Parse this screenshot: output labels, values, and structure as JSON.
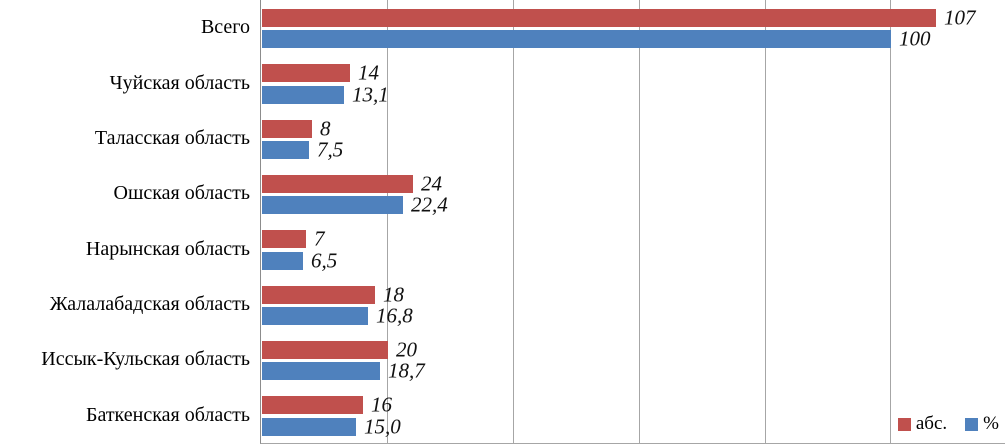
{
  "chart_data": {
    "type": "bar",
    "orientation": "horizontal",
    "title": "",
    "xlabel": "",
    "ylabel": "",
    "categories": [
      "Всего",
      "Чуйская область",
      "Таласская область",
      "Ошская область",
      "Нарынская область",
      "Жалалабадская область",
      "Иссык-Кульская область",
      "Баткенская область"
    ],
    "series": [
      {
        "name": "абс.",
        "color": "#C0504D",
        "values": [
          107,
          14,
          8,
          24,
          7,
          18,
          20,
          16
        ],
        "labels": [
          "107",
          "14",
          "8",
          "24",
          "7",
          "18",
          "20",
          "16"
        ]
      },
      {
        "name": "%",
        "color": "#4F81BD",
        "values": [
          100,
          13.1,
          7.5,
          22.4,
          6.5,
          16.8,
          18.7,
          15.0
        ],
        "labels": [
          "100",
          "13,1",
          "7,5",
          "22,4",
          "6,5",
          "16,8",
          "18,7",
          "15,0"
        ]
      }
    ],
    "xlim": [
      0,
      118.2
    ],
    "gridline_step": 20,
    "gridline_max": 100,
    "grid": true,
    "legend_position": "bottom-right"
  },
  "legend": {
    "items": [
      {
        "label": "абс.",
        "color": "#C0504D"
      },
      {
        "label": "%",
        "color": "#4F81BD"
      }
    ]
  },
  "colors": {
    "series_abs": "#C0504D",
    "series_pct": "#4F81BD",
    "gridline": "#a6a6a6",
    "axis": "#8c8c8c",
    "text": "#000000"
  }
}
